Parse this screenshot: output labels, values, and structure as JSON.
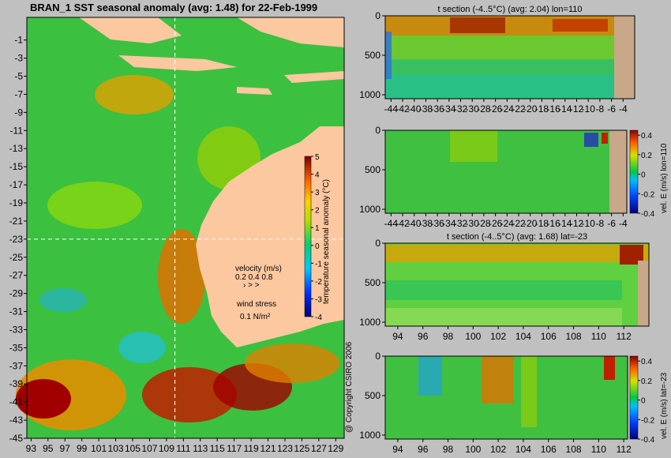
{
  "chart_data": [
    {
      "type": "heatmap",
      "title": "BRAN_1  SST seasonal anomaly  (avg: 1.48)  for 22-Feb-1999",
      "x_ticks": [
        "93",
        "95",
        "97",
        "99",
        "101",
        "103",
        "105",
        "107",
        "109",
        "111",
        "113",
        "115",
        "117",
        "119",
        "121",
        "123",
        "125",
        "127",
        "129"
      ],
      "y_ticks": [
        "-1",
        "-3",
        "-5",
        "-7",
        "-9",
        "-11",
        "-13",
        "-15",
        "-17",
        "-19",
        "-21",
        "-23",
        "-25",
        "-27",
        "-29",
        "-31",
        "-33",
        "-35",
        "-37",
        "-39",
        "-41",
        "-43",
        "-45"
      ],
      "xlim": [
        92.5,
        130
      ],
      "ylim": [
        -45,
        1.5
      ],
      "colorbar": {
        "label": "temperature seasonal anomaly (°C)",
        "ticks": [
          "5",
          "4",
          "3",
          "2",
          "1",
          "0",
          "-1",
          "-2",
          "-3",
          "-4"
        ],
        "range": [
          -4,
          5
        ]
      },
      "section_lines": {
        "lon": 110,
        "lat": -23
      },
      "velocity_legend": {
        "title": "velocity (m/s)",
        "values": "0.2 0.4 0.8",
        "arrows": "›  >  >"
      },
      "wind_legend": {
        "title": "wind stress",
        "value": "0.1 N/m²"
      },
      "copyright": "@ Copyright CSIRO 2006"
    },
    {
      "type": "heatmap",
      "title": "t section (-4..5°C)  (avg: 2.04)  lon=110",
      "x_ticks": [
        "-44",
        "-42",
        "-40",
        "-38",
        "-36",
        "-34",
        "-32",
        "-30",
        "-28",
        "-26",
        "-24",
        "-22",
        "-20",
        "-18",
        "-16",
        "-14",
        "-12",
        "-10",
        "-8",
        "-6",
        "-4"
      ],
      "x_range": [
        -45,
        -2
      ],
      "y_ticks": [
        "0",
        "500",
        "1000"
      ],
      "y_range": [
        0,
        1050
      ]
    },
    {
      "type": "heatmap",
      "title": "",
      "x_ticks": [
        "-44",
        "-42",
        "-40",
        "-38",
        "-36",
        "-34",
        "-32",
        "-30",
        "-28",
        "-26",
        "-24",
        "-22",
        "-20",
        "-18",
        "-16",
        "-14",
        "-12",
        "-10",
        "-8",
        "-6",
        "-4"
      ],
      "x_range": [
        -45,
        -2
      ],
      "y_ticks": [
        "0",
        "500",
        "1000"
      ],
      "y_range": [
        0,
        1050
      ],
      "colorbar": {
        "label": "vel. E (m/s) lon=110",
        "ticks": [
          "0.4",
          "0.2",
          "0",
          "-0.2",
          "-0.4"
        ],
        "range": [
          -0.4,
          0.45
        ]
      }
    },
    {
      "type": "heatmap",
      "title": "t section (-4..5°C)  (avg: 1.68)  lat=-23",
      "x_ticks": [
        "94",
        "96",
        "98",
        "100",
        "102",
        "104",
        "106",
        "108",
        "110",
        "112"
      ],
      "x_range": [
        93,
        114
      ],
      "y_ticks": [
        "0",
        "500",
        "1000"
      ],
      "y_range": [
        0,
        1050
      ]
    },
    {
      "type": "heatmap",
      "title": "",
      "x_ticks": [
        "94",
        "96",
        "98",
        "100",
        "102",
        "104",
        "106",
        "108",
        "110",
        "112"
      ],
      "x_range": [
        93,
        114
      ],
      "y_ticks": [
        "0",
        "500",
        "1000"
      ],
      "y_range": [
        0,
        1050
      ],
      "colorbar": {
        "label": "vel. E (m/s) lat=-23",
        "ticks": [
          "0.4",
          "0.2",
          "0",
          "-0.2",
          "-0.4"
        ],
        "range": [
          -0.4,
          0.45
        ]
      }
    }
  ]
}
